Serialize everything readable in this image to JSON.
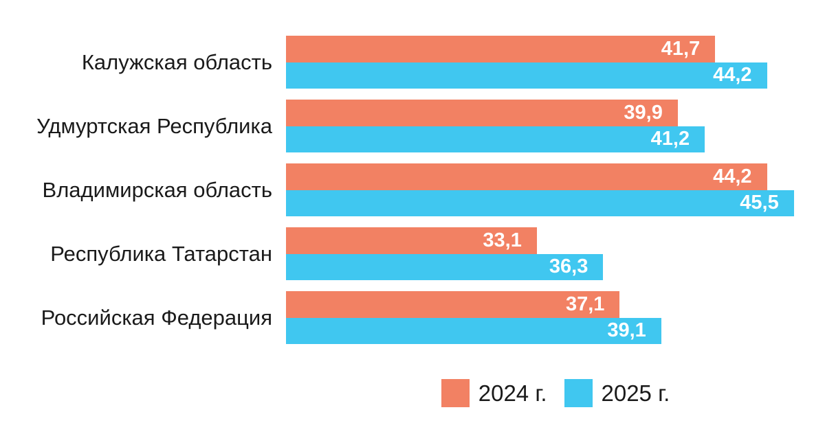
{
  "chart_data": {
    "type": "bar",
    "orientation": "horizontal",
    "title": "",
    "xlabel": "",
    "ylabel": "",
    "grid": false,
    "legend_position": "bottom",
    "xlim": [
      21,
      47
    ],
    "decimal_separator": ",",
    "categories": [
      "Калужская область",
      "Удмуртская Республика",
      "Владимирская область",
      "Республика Татарстан",
      "Российская Федерация"
    ],
    "series": [
      {
        "key": "2024",
        "name": "2024 г.",
        "color": "#F28163",
        "values": [
          41.7,
          39.9,
          44.2,
          33.1,
          37.1
        ],
        "value_labels": [
          "41,7",
          "39,9",
          "44,2",
          "33,1",
          "37,1"
        ]
      },
      {
        "key": "2025",
        "name": "2025 г.",
        "color": "#40C7F0",
        "values": [
          44.2,
          41.2,
          45.5,
          36.3,
          39.1
        ],
        "value_labels": [
          "44,2",
          "41,2",
          "45,5",
          "36,3",
          "39,1"
        ]
      }
    ],
    "value_label_color": "#ffffff",
    "category_label_color": "#1a1a1a"
  }
}
